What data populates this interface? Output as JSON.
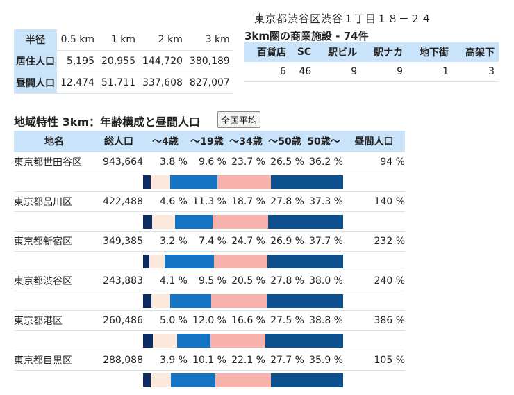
{
  "address": "東京都渋谷区渋谷１丁目１８－２４",
  "radius_table": {
    "header_label": "半径",
    "radii": [
      "0.5 km",
      "1 km",
      "2 km",
      "3 km"
    ],
    "rows": [
      {
        "label": "居住人口",
        "values": [
          "5,195",
          "20,955",
          "144,720",
          "380,189"
        ]
      },
      {
        "label": "昼間人口",
        "values": [
          "12,474",
          "51,711",
          "337,608",
          "827,007"
        ]
      }
    ]
  },
  "commercial": {
    "title": "3km圏の商業施設 - 74件",
    "headers": [
      "百貨店",
      "SC",
      "駅ビル",
      "駅ナカ",
      "地下街",
      "高架下"
    ],
    "values": [
      "6",
      "46",
      "9",
      "9",
      "1",
      "3"
    ]
  },
  "region": {
    "title": "地域特性 3km：年齢構成と昼間人口",
    "national_avg_button": "全国平均",
    "headers": [
      "地名",
      "総人口",
      "～4歳",
      "～19歳",
      "～34歳",
      "～50歳",
      "50歳～",
      "昼間人口"
    ],
    "colors": [
      "#0d2b63",
      "#fde9dc",
      "#1473c2",
      "#f6b2ab",
      "#0b4f8c"
    ],
    "rows": [
      {
        "name": "東京都世田谷区",
        "total": "943,664",
        "ages": [
          "3.8 %",
          "9.6 %",
          "23.7 %",
          "26.5 %",
          "36.2 %"
        ],
        "age_values": [
          3.8,
          9.6,
          23.7,
          26.5,
          36.2
        ],
        "daytime": "94 %"
      },
      {
        "name": "東京都品川区",
        "total": "422,488",
        "ages": [
          "4.6 %",
          "11.3 %",
          "18.7 %",
          "27.8 %",
          "37.3 %"
        ],
        "age_values": [
          4.6,
          11.3,
          18.7,
          27.8,
          37.3
        ],
        "daytime": "140 %"
      },
      {
        "name": "東京都新宿区",
        "total": "349,385",
        "ages": [
          "3.2 %",
          "7.4 %",
          "24.7 %",
          "26.9 %",
          "37.7 %"
        ],
        "age_values": [
          3.2,
          7.4,
          24.7,
          26.9,
          37.7
        ],
        "daytime": "232 %"
      },
      {
        "name": "東京都渋谷区",
        "total": "243,883",
        "ages": [
          "4.1 %",
          "9.5 %",
          "20.5 %",
          "27.8 %",
          "38.0 %"
        ],
        "age_values": [
          4.1,
          9.5,
          20.5,
          27.8,
          38.0
        ],
        "daytime": "240 %"
      },
      {
        "name": "東京都港区",
        "total": "260,486",
        "ages": [
          "5.0 %",
          "12.0 %",
          "16.6 %",
          "27.5 %",
          "38.8 %"
        ],
        "age_values": [
          5.0,
          12.0,
          16.6,
          27.5,
          38.8
        ],
        "daytime": "386 %"
      },
      {
        "name": "東京都目黒区",
        "total": "288,088",
        "ages": [
          "3.9 %",
          "10.1 %",
          "22.1 %",
          "27.7 %",
          "35.9 %"
        ],
        "age_values": [
          3.9,
          10.1,
          22.1,
          27.7,
          35.9
        ],
        "daytime": "105 %"
      }
    ]
  }
}
